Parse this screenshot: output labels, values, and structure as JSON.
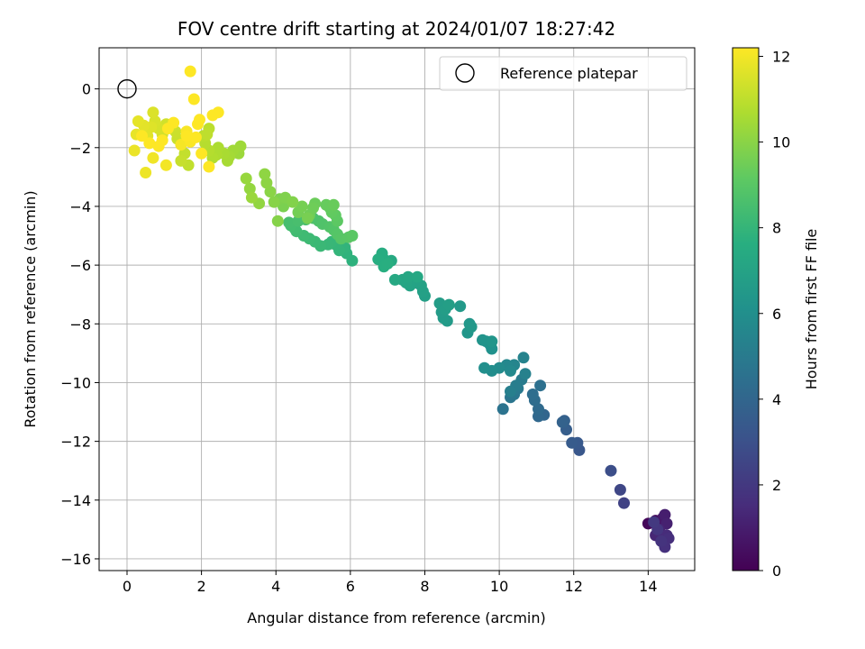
{
  "chart_data": {
    "type": "scatter",
    "title": "FOV centre drift starting at 2024/01/07 18:27:42",
    "xlabel": "Angular distance from reference (arcmin)",
    "ylabel": "Rotation from reference (arcmin)",
    "xlim": [
      -0.75,
      15.25
    ],
    "ylim": [
      -16.4,
      1.4
    ],
    "xticks": [
      0,
      2,
      4,
      6,
      8,
      10,
      12,
      14
    ],
    "yticks": [
      0,
      -2,
      -4,
      -6,
      -8,
      -10,
      -12,
      -14,
      -16
    ],
    "grid": true,
    "legend": {
      "placement": "top-right",
      "entries": [
        "Reference platepar"
      ]
    },
    "reference_point": {
      "name": "Reference platepar",
      "x": 0,
      "y": 0,
      "marker": "open-circle"
    },
    "colorbar": {
      "label": "Hours from first FF file",
      "colormap": "viridis",
      "range": [
        0,
        12.2
      ],
      "ticks": [
        0,
        2,
        4,
        6,
        8,
        10,
        12
      ]
    },
    "series": [
      {
        "points": [
          [
            14.0,
            -14.8,
            0.2
          ],
          [
            14.2,
            -14.7,
            0.4
          ],
          [
            14.3,
            -14.9,
            0.6
          ],
          [
            14.4,
            -14.6,
            0.8
          ],
          [
            14.45,
            -14.5,
            1.0
          ],
          [
            14.5,
            -14.8,
            1.1
          ],
          [
            14.3,
            -15.0,
            1.2
          ],
          [
            14.2,
            -15.2,
            1.3
          ],
          [
            14.4,
            -15.3,
            1.4
          ],
          [
            14.5,
            -15.2,
            1.5
          ],
          [
            14.55,
            -15.3,
            1.6
          ],
          [
            14.45,
            -15.6,
            1.7
          ],
          [
            14.35,
            -15.4,
            1.8
          ],
          [
            14.25,
            -15.0,
            1.9
          ],
          [
            14.15,
            -14.75,
            2.0
          ],
          [
            13.35,
            -14.1,
            2.4
          ],
          [
            13.25,
            -13.65,
            2.6
          ],
          [
            13.0,
            -13.0,
            2.9
          ],
          [
            12.15,
            -12.3,
            3.3
          ],
          [
            12.1,
            -12.05,
            3.4
          ],
          [
            11.95,
            -12.05,
            3.5
          ],
          [
            11.8,
            -11.6,
            3.6
          ],
          [
            11.75,
            -11.3,
            3.7
          ],
          [
            11.7,
            -11.35,
            3.8
          ],
          [
            11.2,
            -11.1,
            4.0
          ],
          [
            11.05,
            -11.15,
            4.1
          ],
          [
            11.05,
            -10.9,
            4.2
          ],
          [
            10.95,
            -10.6,
            4.3
          ],
          [
            10.9,
            -10.4,
            4.4
          ],
          [
            11.1,
            -10.1,
            4.5
          ],
          [
            10.1,
            -10.9,
            4.6
          ],
          [
            10.3,
            -10.5,
            4.7
          ],
          [
            10.4,
            -10.4,
            4.8
          ],
          [
            10.5,
            -10.2,
            4.9
          ],
          [
            10.6,
            -9.9,
            5.0
          ],
          [
            10.45,
            -10.1,
            5.1
          ],
          [
            10.3,
            -10.3,
            5.2
          ],
          [
            10.7,
            -9.7,
            5.3
          ],
          [
            10.65,
            -9.15,
            5.4
          ],
          [
            10.4,
            -9.4,
            5.5
          ],
          [
            10.2,
            -9.4,
            5.6
          ],
          [
            10.3,
            -9.6,
            5.7
          ],
          [
            10.0,
            -9.5,
            5.8
          ],
          [
            9.8,
            -9.6,
            5.9
          ],
          [
            9.6,
            -9.5,
            6.0
          ],
          [
            9.8,
            -8.85,
            6.1
          ],
          [
            9.75,
            -8.7,
            6.15
          ],
          [
            9.65,
            -8.6,
            6.2
          ],
          [
            9.55,
            -8.55,
            6.25
          ],
          [
            9.8,
            -8.6,
            6.3
          ],
          [
            9.15,
            -8.3,
            6.35
          ],
          [
            9.2,
            -8.0,
            6.4
          ],
          [
            9.25,
            -8.1,
            6.45
          ],
          [
            8.95,
            -7.4,
            6.5
          ],
          [
            8.6,
            -7.9,
            6.55
          ],
          [
            8.5,
            -7.8,
            6.6
          ],
          [
            8.45,
            -7.6,
            6.65
          ],
          [
            8.4,
            -7.3,
            6.7
          ],
          [
            8.55,
            -7.5,
            6.75
          ],
          [
            8.65,
            -7.35,
            6.8
          ],
          [
            8.0,
            -7.05,
            6.85
          ],
          [
            7.95,
            -6.9,
            6.9
          ],
          [
            7.9,
            -6.7,
            6.95
          ],
          [
            7.75,
            -6.6,
            7.0
          ],
          [
            7.6,
            -6.7,
            7.05
          ],
          [
            7.5,
            -6.6,
            7.1
          ],
          [
            7.4,
            -6.5,
            7.15
          ],
          [
            7.55,
            -6.4,
            7.2
          ],
          [
            7.8,
            -6.4,
            7.25
          ],
          [
            7.2,
            -6.5,
            7.3
          ],
          [
            7.1,
            -5.85,
            7.35
          ],
          [
            7.0,
            -5.9,
            7.4
          ],
          [
            6.9,
            -5.8,
            7.45
          ],
          [
            6.85,
            -5.6,
            7.5
          ],
          [
            6.75,
            -5.8,
            7.55
          ],
          [
            6.9,
            -6.05,
            7.6
          ],
          [
            7.0,
            -5.95,
            7.65
          ],
          [
            6.05,
            -5.85,
            7.8
          ],
          [
            5.9,
            -5.6,
            7.85
          ],
          [
            5.85,
            -5.4,
            7.9
          ],
          [
            5.7,
            -5.5,
            7.95
          ],
          [
            5.6,
            -5.3,
            8.0
          ],
          [
            5.5,
            -5.2,
            8.05
          ],
          [
            5.4,
            -5.3,
            8.1
          ],
          [
            5.2,
            -5.35,
            8.15
          ],
          [
            5.05,
            -5.2,
            8.2
          ],
          [
            4.9,
            -5.1,
            8.25
          ],
          [
            4.75,
            -5.0,
            8.3
          ],
          [
            4.55,
            -4.85,
            8.35
          ],
          [
            4.5,
            -4.75,
            8.4
          ],
          [
            4.4,
            -4.65,
            8.45
          ],
          [
            4.35,
            -4.55,
            8.5
          ],
          [
            4.6,
            -4.5,
            8.55
          ],
          [
            4.8,
            -4.45,
            8.6
          ],
          [
            5.0,
            -4.4,
            8.65
          ],
          [
            5.15,
            -4.5,
            8.7
          ],
          [
            5.25,
            -4.6,
            8.75
          ],
          [
            5.45,
            -4.7,
            8.8
          ],
          [
            5.55,
            -4.8,
            8.85
          ],
          [
            5.65,
            -4.95,
            8.9
          ],
          [
            5.75,
            -5.1,
            8.95
          ],
          [
            5.95,
            -5.05,
            9.0
          ],
          [
            6.05,
            -5.0,
            9.05
          ],
          [
            5.65,
            -4.5,
            9.1
          ],
          [
            5.6,
            -4.3,
            9.15
          ],
          [
            5.5,
            -4.2,
            9.2
          ],
          [
            5.45,
            -4.05,
            9.25
          ],
          [
            5.35,
            -3.95,
            9.3
          ],
          [
            5.55,
            -3.95,
            9.35
          ],
          [
            5.05,
            -3.9,
            9.4
          ],
          [
            5.0,
            -4.05,
            9.45
          ],
          [
            4.9,
            -4.3,
            9.5
          ],
          [
            4.6,
            -4.2,
            9.55
          ],
          [
            4.7,
            -4.0,
            9.6
          ],
          [
            4.85,
            -4.4,
            9.65
          ],
          [
            4.2,
            -4.0,
            9.7
          ],
          [
            4.1,
            -3.75,
            9.75
          ],
          [
            4.25,
            -3.7,
            9.8
          ],
          [
            4.45,
            -3.85,
            9.85
          ],
          [
            4.05,
            -4.5,
            9.9
          ],
          [
            3.95,
            -3.85,
            9.95
          ],
          [
            3.85,
            -3.5,
            10.0
          ],
          [
            3.75,
            -3.2,
            10.05
          ],
          [
            3.7,
            -2.9,
            10.1
          ],
          [
            3.55,
            -3.9,
            10.15
          ],
          [
            3.3,
            -3.4,
            10.2
          ],
          [
            3.2,
            -3.05,
            10.25
          ],
          [
            3.35,
            -3.7,
            10.3
          ],
          [
            3.0,
            -2.2,
            10.35
          ],
          [
            3.05,
            -1.95,
            10.4
          ],
          [
            2.85,
            -2.1,
            10.45
          ],
          [
            2.75,
            -2.3,
            10.5
          ],
          [
            2.7,
            -2.45,
            10.55
          ],
          [
            2.6,
            -2.2,
            10.6
          ],
          [
            2.45,
            -2.0,
            10.65
          ],
          [
            2.4,
            -2.25,
            10.7
          ],
          [
            2.3,
            -2.35,
            10.75
          ],
          [
            2.2,
            -2.1,
            10.8
          ],
          [
            2.1,
            -1.85,
            10.85
          ],
          [
            2.05,
            -1.6,
            10.9
          ],
          [
            2.2,
            -1.35,
            10.95
          ],
          [
            2.15,
            -1.55,
            11.0
          ],
          [
            1.65,
            -2.6,
            11.05
          ],
          [
            1.55,
            -2.2,
            11.1
          ],
          [
            1.45,
            -2.45,
            11.15
          ],
          [
            1.35,
            -1.7,
            11.2
          ],
          [
            1.3,
            -1.45,
            11.25
          ],
          [
            1.2,
            -1.25,
            11.3
          ],
          [
            1.05,
            -1.2,
            11.35
          ],
          [
            0.95,
            -1.55,
            11.4
          ],
          [
            0.85,
            -1.35,
            11.45
          ],
          [
            0.75,
            -1.1,
            11.5
          ],
          [
            0.7,
            -0.8,
            11.55
          ],
          [
            0.65,
            -1.3,
            11.6
          ],
          [
            0.55,
            -1.6,
            11.65
          ],
          [
            0.45,
            -1.25,
            11.7
          ],
          [
            0.3,
            -1.1,
            11.75
          ],
          [
            0.25,
            -1.55,
            11.8
          ],
          [
            0.2,
            -2.1,
            11.85
          ],
          [
            0.5,
            -2.85,
            11.9
          ],
          [
            0.7,
            -2.35,
            11.95
          ],
          [
            1.05,
            -2.6,
            12.0
          ],
          [
            1.45,
            -1.9,
            12.05
          ],
          [
            1.6,
            -1.45,
            12.1
          ],
          [
            1.7,
            -1.8,
            12.15
          ],
          [
            1.85,
            -1.65,
            12.2
          ],
          [
            1.9,
            -1.2,
            12.2
          ],
          [
            1.95,
            -1.05,
            12.2
          ],
          [
            2.0,
            -2.2,
            12.2
          ],
          [
            2.2,
            -2.65,
            12.2
          ],
          [
            2.3,
            -0.9,
            12.2
          ],
          [
            2.45,
            -0.8,
            12.2
          ],
          [
            1.8,
            -0.35,
            12.2
          ],
          [
            1.7,
            0.6,
            12.2
          ],
          [
            1.25,
            -1.15,
            12.2
          ],
          [
            1.1,
            -1.35,
            12.2
          ],
          [
            0.95,
            -1.75,
            12.2
          ],
          [
            0.85,
            -1.95,
            12.2
          ],
          [
            0.6,
            -1.85,
            12.2
          ],
          [
            0.4,
            -1.6,
            12.2
          ],
          [
            1.6,
            -1.6,
            12.2
          ]
        ]
      }
    ]
  }
}
